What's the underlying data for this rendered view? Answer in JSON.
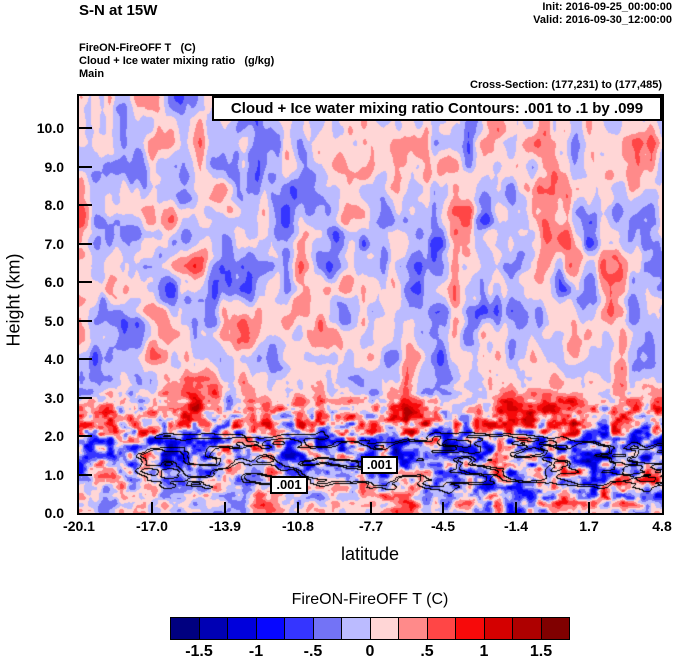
{
  "header": {
    "title": "S-N at 15W",
    "init_line": "Init: 2016-09-25_00:00:00",
    "valid_line": "Valid: 2016-09-30_12:00:00",
    "field_line1": "FireON-FireOFF T   (C)",
    "field_line2": "Cloud + Ice water mixing ratio   (g/kg)",
    "field_line3": "Main",
    "cross_section": "Cross-Section: (177,231) to (177,485)"
  },
  "plot": {
    "contour_title": "Cloud + Ice water mixing ratio Contours: .001 to .1 by .099",
    "x_axis": {
      "label": "latitude",
      "ticks": [
        "-20.1",
        "-17.0",
        "-13.9",
        "-10.8",
        "-7.7",
        "-4.5",
        "-1.4",
        "1.7",
        "4.8"
      ]
    },
    "y_axis": {
      "label": "Height (km)",
      "ticks": [
        "10.0",
        "9.0",
        "8.0",
        "7.0",
        "6.0",
        "5.0",
        "4.0",
        "3.0",
        "2.0",
        "1.0",
        "0.0"
      ]
    },
    "contour_labels": [
      ".001",
      ".001"
    ]
  },
  "colorbar": {
    "title": "FireON-FireOFF T  (C)",
    "tick_labels": [
      "-1.5",
      "-1",
      "-.5",
      "0",
      ".5",
      "1",
      "1.5"
    ],
    "colors": [
      "#000080",
      "#0000B4",
      "#0000DC",
      "#0707FF",
      "#3535FF",
      "#7373F6",
      "#BBBBFF",
      "#FFD6D6",
      "#FF8A8A",
      "#FF4646",
      "#F70A0A",
      "#D40000",
      "#AE0000",
      "#800000"
    ]
  },
  "chart_data": {
    "type": "heatmap",
    "title": "S-N at 15W",
    "subtitle": "FireON-FireOFF T (C) shaded; Cloud + Ice water mixing ratio (g/kg) contoured",
    "xlabel": "latitude",
    "ylabel": "Height (km)",
    "xlim": [
      -20.1,
      4.8
    ],
    "ylim": [
      0.0,
      10.8
    ],
    "x_ticks": [
      -20.1,
      -17.0,
      -13.9,
      -10.8,
      -7.7,
      -4.5,
      -1.4,
      1.7,
      4.8
    ],
    "y_ticks": [
      0.0,
      1.0,
      2.0,
      3.0,
      4.0,
      5.0,
      6.0,
      7.0,
      8.0,
      9.0,
      10.0
    ],
    "fill_field": "FireON-FireOFF T (C)",
    "fill_levels": [
      -1.5,
      -1.25,
      -1.0,
      -0.75,
      -0.5,
      -0.25,
      0,
      0.25,
      0.5,
      0.75,
      1.0,
      1.25,
      1.5
    ],
    "fill_palette": [
      "#000080",
      "#0000B4",
      "#0000DC",
      "#0707FF",
      "#3535FF",
      "#7373F6",
      "#BBBBFF",
      "#FFD6D6",
      "#FF8A8A",
      "#FF4646",
      "#F70A0A",
      "#D40000",
      "#AE0000",
      "#800000"
    ],
    "overlay_contours": {
      "field": "Cloud + Ice water mixing ratio (g/kg)",
      "levels": [
        0.001,
        0.1
      ],
      "from": 0.001,
      "to": 0.1,
      "by": 0.099,
      "label": ".001",
      "located": "between roughly 0.5 and 2.5 km height across most of the section"
    },
    "legend_position": "bottom",
    "grid": false
  }
}
